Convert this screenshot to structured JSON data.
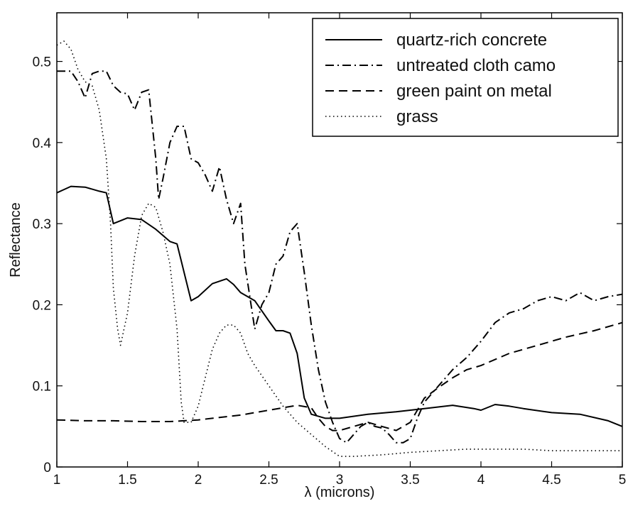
{
  "chart_data": {
    "type": "line",
    "xlabel": "λ (microns)",
    "ylabel": "Reflectance",
    "xlim": [
      1,
      5
    ],
    "ylim": [
      0,
      0.56
    ],
    "xticks": [
      1,
      1.5,
      2,
      2.5,
      3,
      3.5,
      4,
      4.5,
      5
    ],
    "xtick_labels": [
      "1",
      "1.5",
      "2",
      "2.5",
      "3",
      "3.5",
      "4",
      "4.5",
      "5"
    ],
    "yticks": [
      0,
      0.1,
      0.2,
      0.3,
      0.4,
      0.5
    ],
    "ytick_labels": [
      "0",
      "0.1",
      "0.2",
      "0.3",
      "0.4",
      "0.5"
    ],
    "grid": false,
    "legend_position": "top-right",
    "series": [
      {
        "name": "quartz-rich concrete",
        "style": "solid",
        "color": "#000000",
        "x": [
          1.0,
          1.05,
          1.1,
          1.2,
          1.3,
          1.35,
          1.4,
          1.5,
          1.6,
          1.7,
          1.8,
          1.85,
          1.9,
          1.95,
          2.0,
          2.1,
          2.2,
          2.25,
          2.3,
          2.4,
          2.5,
          2.55,
          2.6,
          2.65,
          2.7,
          2.75,
          2.8,
          2.9,
          3.0,
          3.2,
          3.4,
          3.6,
          3.8,
          3.95,
          4.0,
          4.1,
          4.2,
          4.3,
          4.5,
          4.7,
          4.9,
          5.0
        ],
        "y": [
          0.338,
          0.342,
          0.346,
          0.345,
          0.34,
          0.338,
          0.3,
          0.307,
          0.305,
          0.293,
          0.278,
          0.275,
          0.24,
          0.205,
          0.21,
          0.226,
          0.232,
          0.225,
          0.215,
          0.205,
          0.18,
          0.168,
          0.168,
          0.165,
          0.14,
          0.085,
          0.065,
          0.06,
          0.06,
          0.065,
          0.068,
          0.072,
          0.076,
          0.072,
          0.07,
          0.077,
          0.075,
          0.072,
          0.067,
          0.065,
          0.057,
          0.05
        ]
      },
      {
        "name": "untreated cloth camo",
        "style": "dashdot",
        "color": "#000000",
        "x": [
          1.0,
          1.1,
          1.15,
          1.2,
          1.25,
          1.3,
          1.35,
          1.4,
          1.45,
          1.5,
          1.55,
          1.6,
          1.65,
          1.7,
          1.72,
          1.75,
          1.8,
          1.85,
          1.9,
          1.95,
          2.0,
          2.05,
          2.1,
          2.15,
          2.2,
          2.25,
          2.3,
          2.33,
          2.4,
          2.45,
          2.5,
          2.55,
          2.6,
          2.65,
          2.7,
          2.75,
          2.8,
          2.85,
          2.9,
          2.95,
          3.0,
          3.05,
          3.1,
          3.15,
          3.2,
          3.25,
          3.3,
          3.35,
          3.4,
          3.45,
          3.5,
          3.55,
          3.6,
          3.65,
          3.7,
          3.8,
          3.9,
          4.0,
          4.1,
          4.2,
          4.3,
          4.4,
          4.5,
          4.6,
          4.7,
          4.8,
          4.9,
          5.0
        ],
        "y": [
          0.488,
          0.488,
          0.475,
          0.455,
          0.485,
          0.488,
          0.488,
          0.47,
          0.462,
          0.46,
          0.44,
          0.462,
          0.465,
          0.38,
          0.33,
          0.355,
          0.4,
          0.42,
          0.42,
          0.38,
          0.375,
          0.36,
          0.34,
          0.37,
          0.33,
          0.3,
          0.325,
          0.25,
          0.17,
          0.2,
          0.215,
          0.25,
          0.26,
          0.29,
          0.3,
          0.24,
          0.175,
          0.12,
          0.08,
          0.055,
          0.035,
          0.03,
          0.04,
          0.05,
          0.055,
          0.05,
          0.048,
          0.04,
          0.03,
          0.03,
          0.035,
          0.06,
          0.08,
          0.09,
          0.1,
          0.12,
          0.135,
          0.155,
          0.178,
          0.19,
          0.195,
          0.205,
          0.21,
          0.205,
          0.215,
          0.205,
          0.21,
          0.213
        ]
      },
      {
        "name": "green paint on metal",
        "style": "dashed",
        "color": "#000000",
        "x": [
          1.0,
          1.2,
          1.4,
          1.6,
          1.8,
          1.9,
          2.0,
          2.1,
          2.2,
          2.3,
          2.4,
          2.5,
          2.6,
          2.7,
          2.8,
          2.85,
          2.9,
          2.95,
          3.0,
          3.1,
          3.2,
          3.3,
          3.4,
          3.5,
          3.6,
          3.7,
          3.8,
          3.9,
          4.0,
          4.2,
          4.4,
          4.6,
          4.8,
          5.0
        ],
        "y": [
          0.058,
          0.057,
          0.057,
          0.056,
          0.056,
          0.057,
          0.058,
          0.06,
          0.062,
          0.064,
          0.067,
          0.07,
          0.073,
          0.076,
          0.073,
          0.06,
          0.05,
          0.045,
          0.045,
          0.05,
          0.055,
          0.05,
          0.045,
          0.055,
          0.085,
          0.098,
          0.11,
          0.12,
          0.125,
          0.14,
          0.15,
          0.16,
          0.168,
          0.178
        ]
      },
      {
        "name": "grass",
        "style": "dotted",
        "color": "#000000",
        "x": [
          1.0,
          1.05,
          1.1,
          1.15,
          1.2,
          1.25,
          1.3,
          1.35,
          1.38,
          1.4,
          1.43,
          1.45,
          1.5,
          1.55,
          1.6,
          1.65,
          1.7,
          1.75,
          1.8,
          1.85,
          1.88,
          1.9,
          1.95,
          2.0,
          2.05,
          2.1,
          2.15,
          2.2,
          2.25,
          2.3,
          2.35,
          2.4,
          2.5,
          2.6,
          2.7,
          2.8,
          2.9,
          3.0,
          3.1,
          3.3,
          3.5,
          3.7,
          3.9,
          4.1,
          4.3,
          4.5,
          4.7,
          5.0
        ],
        "y": [
          0.52,
          0.525,
          0.515,
          0.49,
          0.475,
          0.47,
          0.44,
          0.38,
          0.3,
          0.22,
          0.17,
          0.15,
          0.19,
          0.26,
          0.31,
          0.325,
          0.32,
          0.29,
          0.25,
          0.17,
          0.08,
          0.055,
          0.055,
          0.075,
          0.11,
          0.145,
          0.165,
          0.175,
          0.175,
          0.165,
          0.14,
          0.125,
          0.1,
          0.075,
          0.055,
          0.04,
          0.025,
          0.013,
          0.013,
          0.015,
          0.018,
          0.02,
          0.022,
          0.022,
          0.022,
          0.02,
          0.02,
          0.02
        ]
      }
    ]
  }
}
